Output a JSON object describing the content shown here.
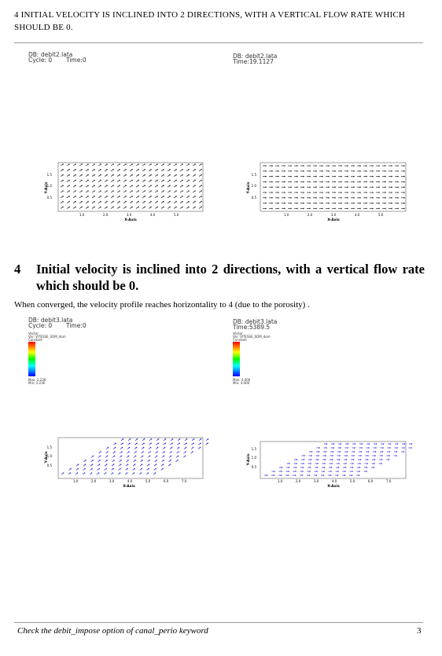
{
  "running_header": "4   INITIAL VELOCITY IS INCLINED INTO 2 DIRECTIONS, WITH A VERTICAL FLOW RATE WHICH SHOULD BE 0.",
  "plots": {
    "p1": {
      "db": "DB: debit2.lata",
      "cycle": "Cycle: 0",
      "time": "Time:0",
      "yticks": [
        "1.5",
        "1.0",
        "0.5"
      ],
      "xticks": [
        "1.0",
        "2.0",
        "3.0",
        "4.0",
        "5.0"
      ],
      "xlabel": "X-Axis",
      "ylabel": "Y-Axis"
    },
    "p2": {
      "db": "DB: debit2.lata",
      "time": "Time:19.1127",
      "yticks": [
        "1.5",
        "1.0",
        "0.5"
      ],
      "xticks": [
        "1.0",
        "2.0",
        "3.0",
        "4.0",
        "5.0"
      ],
      "xlabel": "X-Axis",
      "ylabel": "Y-Axis"
    },
    "p3": {
      "db": "DB: debit3.lata",
      "cycle": "Cycle: 0",
      "time": "Time:0",
      "legend": [
        "Vector",
        "Var: VITESSE_SOM_dom",
        "Constant"
      ],
      "max": "Max: 2.236",
      "min": "Min: 2.236",
      "yticks": [
        "1.5",
        "1.0",
        "0.5"
      ],
      "xticks": [
        "1.0",
        "2.0",
        "3.0",
        "4.0",
        "5.0",
        "6.0",
        "7.0"
      ],
      "xlabel": "X-Axis",
      "ylabel": "Y-Axis"
    },
    "p4": {
      "db": "DB: debit3.lata",
      "time": "Time:5389.5",
      "legend": [
        "Vector",
        "Var: VITESSE_SOM_dom",
        "Constant"
      ],
      "max": "Max: 4.000",
      "min": "Min: 4.000",
      "yticks": [
        "1.5",
        "1.0",
        "0.5"
      ],
      "xticks": [
        "1.0",
        "2.0",
        "3.0",
        "4.0",
        "5.0",
        "6.0",
        "7.0"
      ],
      "xlabel": "X-Axis",
      "ylabel": "Y-Axis"
    }
  },
  "section": {
    "number": "4",
    "title": "Initial velocity is inclined into 2 directions, with a vertical flow rate which should be 0."
  },
  "paragraph": "When converged, the velocity profile reaches horizontality to 4 (due to the porosity) .",
  "footer": "Check the debit_impose option of canal_perio keyword",
  "page_number": "3",
  "colors": {
    "vector_dark": "#222222",
    "vector_blue": "#2a2ae0",
    "frame": "#888888"
  }
}
